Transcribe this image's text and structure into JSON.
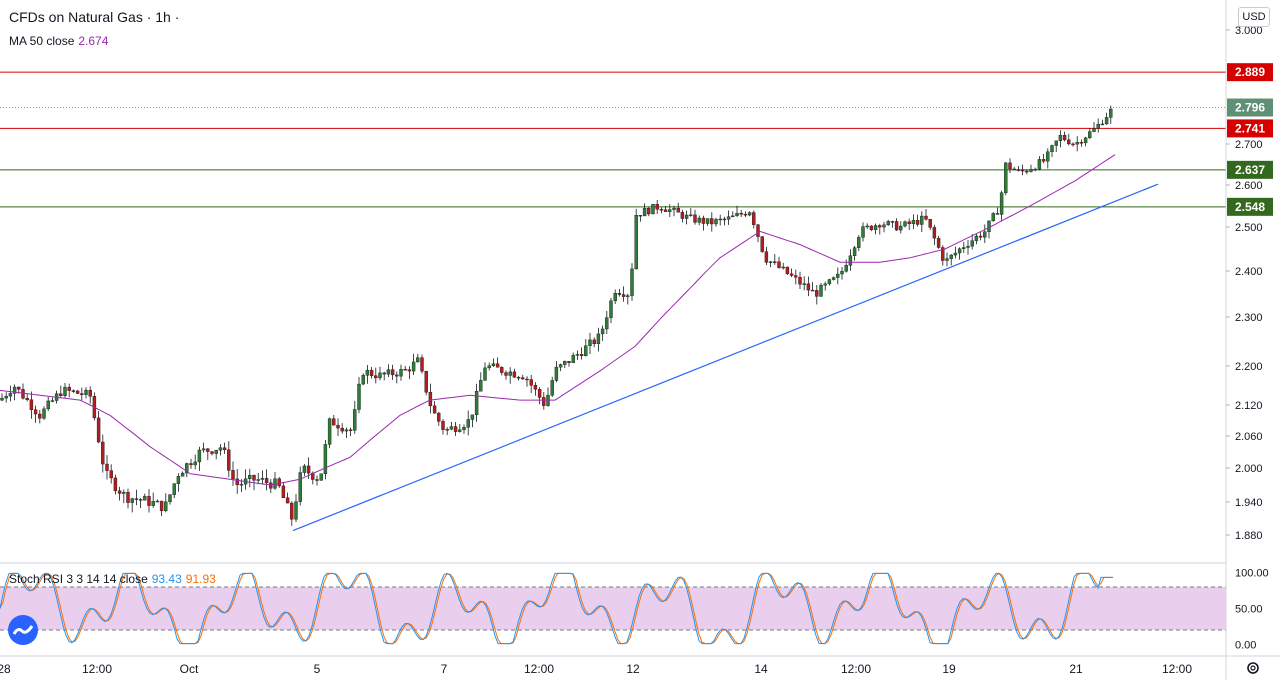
{
  "header": {
    "symbol_title": "CFDs on Natural Gas · 1h ·",
    "ma_label": "MA 50 close",
    "ma_value": "2.674",
    "currency": "USD"
  },
  "rsi_legend": {
    "label": "Stoch RSI 3 3 14 14 close",
    "k_value": "93.43",
    "d_value": "91.93"
  },
  "colors": {
    "up": "#26a69a",
    "down": "#ef5350",
    "candle_body_up": "#2e7d32",
    "candle_body_down": "#b71c1c",
    "ma": "#9c27b0",
    "trendline": "#2962ff",
    "resistance": "#d50000",
    "support": "#33691e",
    "price": "#5f8f74",
    "stoch_k": "#2196f3",
    "stoch_d": "#ff6d00",
    "stoch_band": "#e1bee7"
  },
  "chart_data": {
    "type": "candlestick",
    "instrument": "CFDs on Natural Gas",
    "timeframe": "1h",
    "y_ticks": [
      "3.000",
      "2.700",
      "2.600",
      "2.500",
      "2.400",
      "2.300",
      "2.200",
      "2.120",
      "2.060",
      "2.000",
      "1.940",
      "1.880"
    ],
    "x_ticks": [
      "28",
      "12:00",
      "Oct",
      "5",
      "7",
      "12:00",
      "12",
      "14",
      "12:00",
      "19",
      "21",
      "12:00"
    ],
    "levels": [
      {
        "value": 2.889,
        "label": "2.889",
        "kind": "resistance"
      },
      {
        "value": 2.741,
        "label": "2.741",
        "kind": "resistance"
      },
      {
        "value": 2.637,
        "label": "2.637",
        "kind": "support"
      },
      {
        "value": 2.548,
        "label": "2.548",
        "kind": "support"
      }
    ],
    "last_price": {
      "value": 2.796,
      "label": "2.796"
    },
    "price_path": [
      [
        0,
        2.13
      ],
      [
        14,
        2.16
      ],
      [
        40,
        2.1
      ],
      [
        62,
        2.15
      ],
      [
        90,
        2.14
      ],
      [
        105,
        1.99
      ],
      [
        125,
        1.95
      ],
      [
        150,
        1.94
      ],
      [
        165,
        1.93
      ],
      [
        178,
        1.99
      ],
      [
        200,
        2.03
      ],
      [
        222,
        2.04
      ],
      [
        235,
        1.97
      ],
      [
        255,
        1.98
      ],
      [
        278,
        1.97
      ],
      [
        292,
        1.91
      ],
      [
        302,
        2.0
      ],
      [
        320,
        1.98
      ],
      [
        330,
        2.09
      ],
      [
        352,
        2.07
      ],
      [
        362,
        2.19
      ],
      [
        380,
        2.18
      ],
      [
        405,
        2.19
      ],
      [
        418,
        2.21
      ],
      [
        432,
        2.11
      ],
      [
        445,
        2.07
      ],
      [
        470,
        2.09
      ],
      [
        485,
        2.2
      ],
      [
        505,
        2.19
      ],
      [
        525,
        2.18
      ],
      [
        545,
        2.12
      ],
      [
        555,
        2.19
      ],
      [
        575,
        2.22
      ],
      [
        600,
        2.26
      ],
      [
        615,
        2.36
      ],
      [
        630,
        2.35
      ],
      [
        636,
        2.53
      ],
      [
        660,
        2.55
      ],
      [
        690,
        2.52
      ],
      [
        710,
        2.51
      ],
      [
        730,
        2.52
      ],
      [
        750,
        2.54
      ],
      [
        765,
        2.43
      ],
      [
        790,
        2.39
      ],
      [
        815,
        2.35
      ],
      [
        840,
        2.39
      ],
      [
        860,
        2.49
      ],
      [
        880,
        2.51
      ],
      [
        900,
        2.5
      ],
      [
        925,
        2.52
      ],
      [
        945,
        2.42
      ],
      [
        965,
        2.46
      ],
      [
        985,
        2.49
      ],
      [
        1000,
        2.55
      ],
      [
        1005,
        2.65
      ],
      [
        1020,
        2.63
      ],
      [
        1045,
        2.66
      ],
      [
        1060,
        2.72
      ],
      [
        1075,
        2.7
      ],
      [
        1095,
        2.74
      ],
      [
        1115,
        2.8
      ]
    ],
    "ma_path": [
      [
        0,
        2.15
      ],
      [
        40,
        2.14
      ],
      [
        80,
        2.13
      ],
      [
        110,
        2.1
      ],
      [
        150,
        2.04
      ],
      [
        190,
        1.99
      ],
      [
        230,
        1.98
      ],
      [
        270,
        1.97
      ],
      [
        300,
        1.98
      ],
      [
        350,
        2.02
      ],
      [
        400,
        2.1
      ],
      [
        430,
        2.13
      ],
      [
        470,
        2.14
      ],
      [
        520,
        2.13
      ],
      [
        555,
        2.13
      ],
      [
        600,
        2.19
      ],
      [
        635,
        2.24
      ],
      [
        680,
        2.34
      ],
      [
        720,
        2.43
      ],
      [
        760,
        2.49
      ],
      [
        800,
        2.46
      ],
      [
        840,
        2.42
      ],
      [
        880,
        2.42
      ],
      [
        910,
        2.43
      ],
      [
        945,
        2.45
      ],
      [
        990,
        2.5
      ],
      [
        1030,
        2.55
      ],
      [
        1075,
        2.61
      ],
      [
        1115,
        2.674
      ]
    ],
    "trendline": {
      "from": [
        293,
        1.888
      ],
      "to": [
        1158,
        2.602
      ]
    },
    "stoch_rsi": {
      "ticks": [
        "100.00",
        "50.00",
        "0.00"
      ],
      "upper_band": 80,
      "lower_band": 20,
      "k_last": 93.43,
      "d_last": 91.93
    }
  }
}
